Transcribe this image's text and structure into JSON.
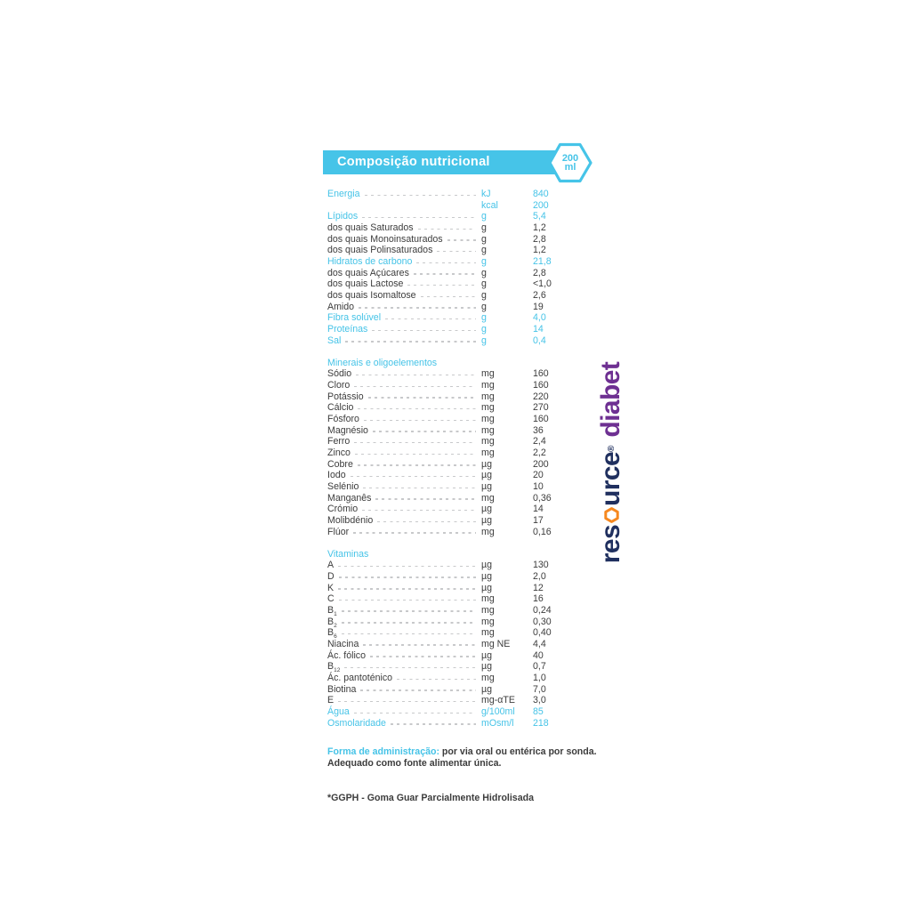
{
  "header": {
    "title": "Composição nutricional",
    "badge": {
      "value": "200",
      "unit": "ml"
    }
  },
  "table": {
    "sections": [
      {
        "heading": null,
        "rows": [
          {
            "label": "Energia",
            "unit": "kJ",
            "value": "840",
            "accent": true
          },
          {
            "label": "",
            "unit": "kcal",
            "value": "200",
            "accent": true,
            "no_leader": true
          },
          {
            "label": "Lípidos",
            "unit": "g",
            "value": "5,4",
            "accent": true
          },
          {
            "label": "dos quais Saturados",
            "unit": "g",
            "value": "1,2"
          },
          {
            "label": "dos quais Monoinsaturados",
            "unit": "g",
            "value": "2,8"
          },
          {
            "label": "dos quais Polinsaturados",
            "unit": "g",
            "value": "1,2"
          },
          {
            "label": "Hidratos de carbono",
            "unit": "g",
            "value": "21,8",
            "accent": true
          },
          {
            "label": "dos quais Açúcares",
            "unit": "g",
            "value": "2,8"
          },
          {
            "label": "dos quais Lactose",
            "unit": "g",
            "value": "<1,0"
          },
          {
            "label": "dos quais Isomaltose",
            "unit": "g",
            "value": "2,6"
          },
          {
            "label": "Amido",
            "unit": "g",
            "value": "19"
          },
          {
            "label": "Fibra solúvel",
            "unit": "g",
            "value": "4,0",
            "accent": true
          },
          {
            "label": "Proteínas",
            "unit": "g",
            "value": "14",
            "accent": true
          },
          {
            "label": "Sal",
            "unit": "g",
            "value": "0,4",
            "accent": true
          }
        ]
      },
      {
        "heading": "Minerais e oligoelementos",
        "rows": [
          {
            "label": "Sódio",
            "unit": "mg",
            "value": "160"
          },
          {
            "label": "Cloro",
            "unit": "mg",
            "value": "160"
          },
          {
            "label": "Potássio",
            "unit": "mg",
            "value": "220"
          },
          {
            "label": "Cálcio",
            "unit": "mg",
            "value": "270"
          },
          {
            "label": "Fósforo",
            "unit": "mg",
            "value": "160"
          },
          {
            "label": "Magnésio",
            "unit": "mg",
            "value": "36"
          },
          {
            "label": "Ferro",
            "unit": "mg",
            "value": "2,4"
          },
          {
            "label": "Zinco",
            "unit": "mg",
            "value": "2,2"
          },
          {
            "label": "Cobre",
            "unit": "µg",
            "value": "200"
          },
          {
            "label": "Iodo",
            "unit": "µg",
            "value": "20"
          },
          {
            "label": "Selénio",
            "unit": "µg",
            "value": "10"
          },
          {
            "label": "Manganês",
            "unit": "mg",
            "value": "0,36"
          },
          {
            "label": "Crómio",
            "unit": "µg",
            "value": "14"
          },
          {
            "label": "Molibdénio",
            "unit": "µg",
            "value": "17"
          },
          {
            "label": "Flúor",
            "unit": "mg",
            "value": "0,16"
          }
        ]
      },
      {
        "heading": "Vitaminas",
        "rows": [
          {
            "label": "A",
            "unit": "µg",
            "value": "130"
          },
          {
            "label": "D",
            "unit": "µg",
            "value": "2,0"
          },
          {
            "label": "K",
            "unit": "µg",
            "value": "12"
          },
          {
            "label": "C",
            "unit": "mg",
            "value": "16"
          },
          {
            "label": "B",
            "sub": "1",
            "unit": "mg",
            "value": "0,24"
          },
          {
            "label": "B",
            "sub": "2",
            "unit": "mg",
            "value": "0,30"
          },
          {
            "label": "B",
            "sub": "6",
            "unit": "mg",
            "value": "0,40"
          },
          {
            "label": "Niacina",
            "unit": "mg NE",
            "value": "4,4"
          },
          {
            "label": "Ác. fólico",
            "unit": "µg",
            "value": "40"
          },
          {
            "label": "B",
            "sub": "12",
            "unit": "µg",
            "value": "0,7"
          },
          {
            "label": "Ác. pantoténico",
            "unit": "mg",
            "value": "1,0"
          },
          {
            "label": "Biotina",
            "unit": "µg",
            "value": "7,0"
          },
          {
            "label": "E",
            "unit": "mg-αTE",
            "value": "3,0"
          },
          {
            "label": "Água",
            "unit": "g/100ml",
            "value": "85",
            "accent": true
          },
          {
            "label": "Osmolaridade",
            "unit": "mOsm/l",
            "value": "218",
            "accent": true
          }
        ]
      }
    ]
  },
  "footer": {
    "admin_label": "Forma de administração:",
    "admin_text": " por via oral ou entérica por sonda.",
    "admin_line2": "Adequado como fonte alimentar única.",
    "footnote": "*GGPH - Goma Guar Parcialmente Hidrolisada"
  },
  "logo": {
    "brand_pre": "res",
    "brand_post": "urce",
    "reg": "®",
    "product": "diabet"
  },
  "colors": {
    "accent_cyan": "#45c3e7",
    "text": "#3c3c3c",
    "dash_gray": "#c8c9cb",
    "brand_navy": "#20305f",
    "brand_purple": "#6e3092",
    "brand_orange": "#f6881f"
  }
}
